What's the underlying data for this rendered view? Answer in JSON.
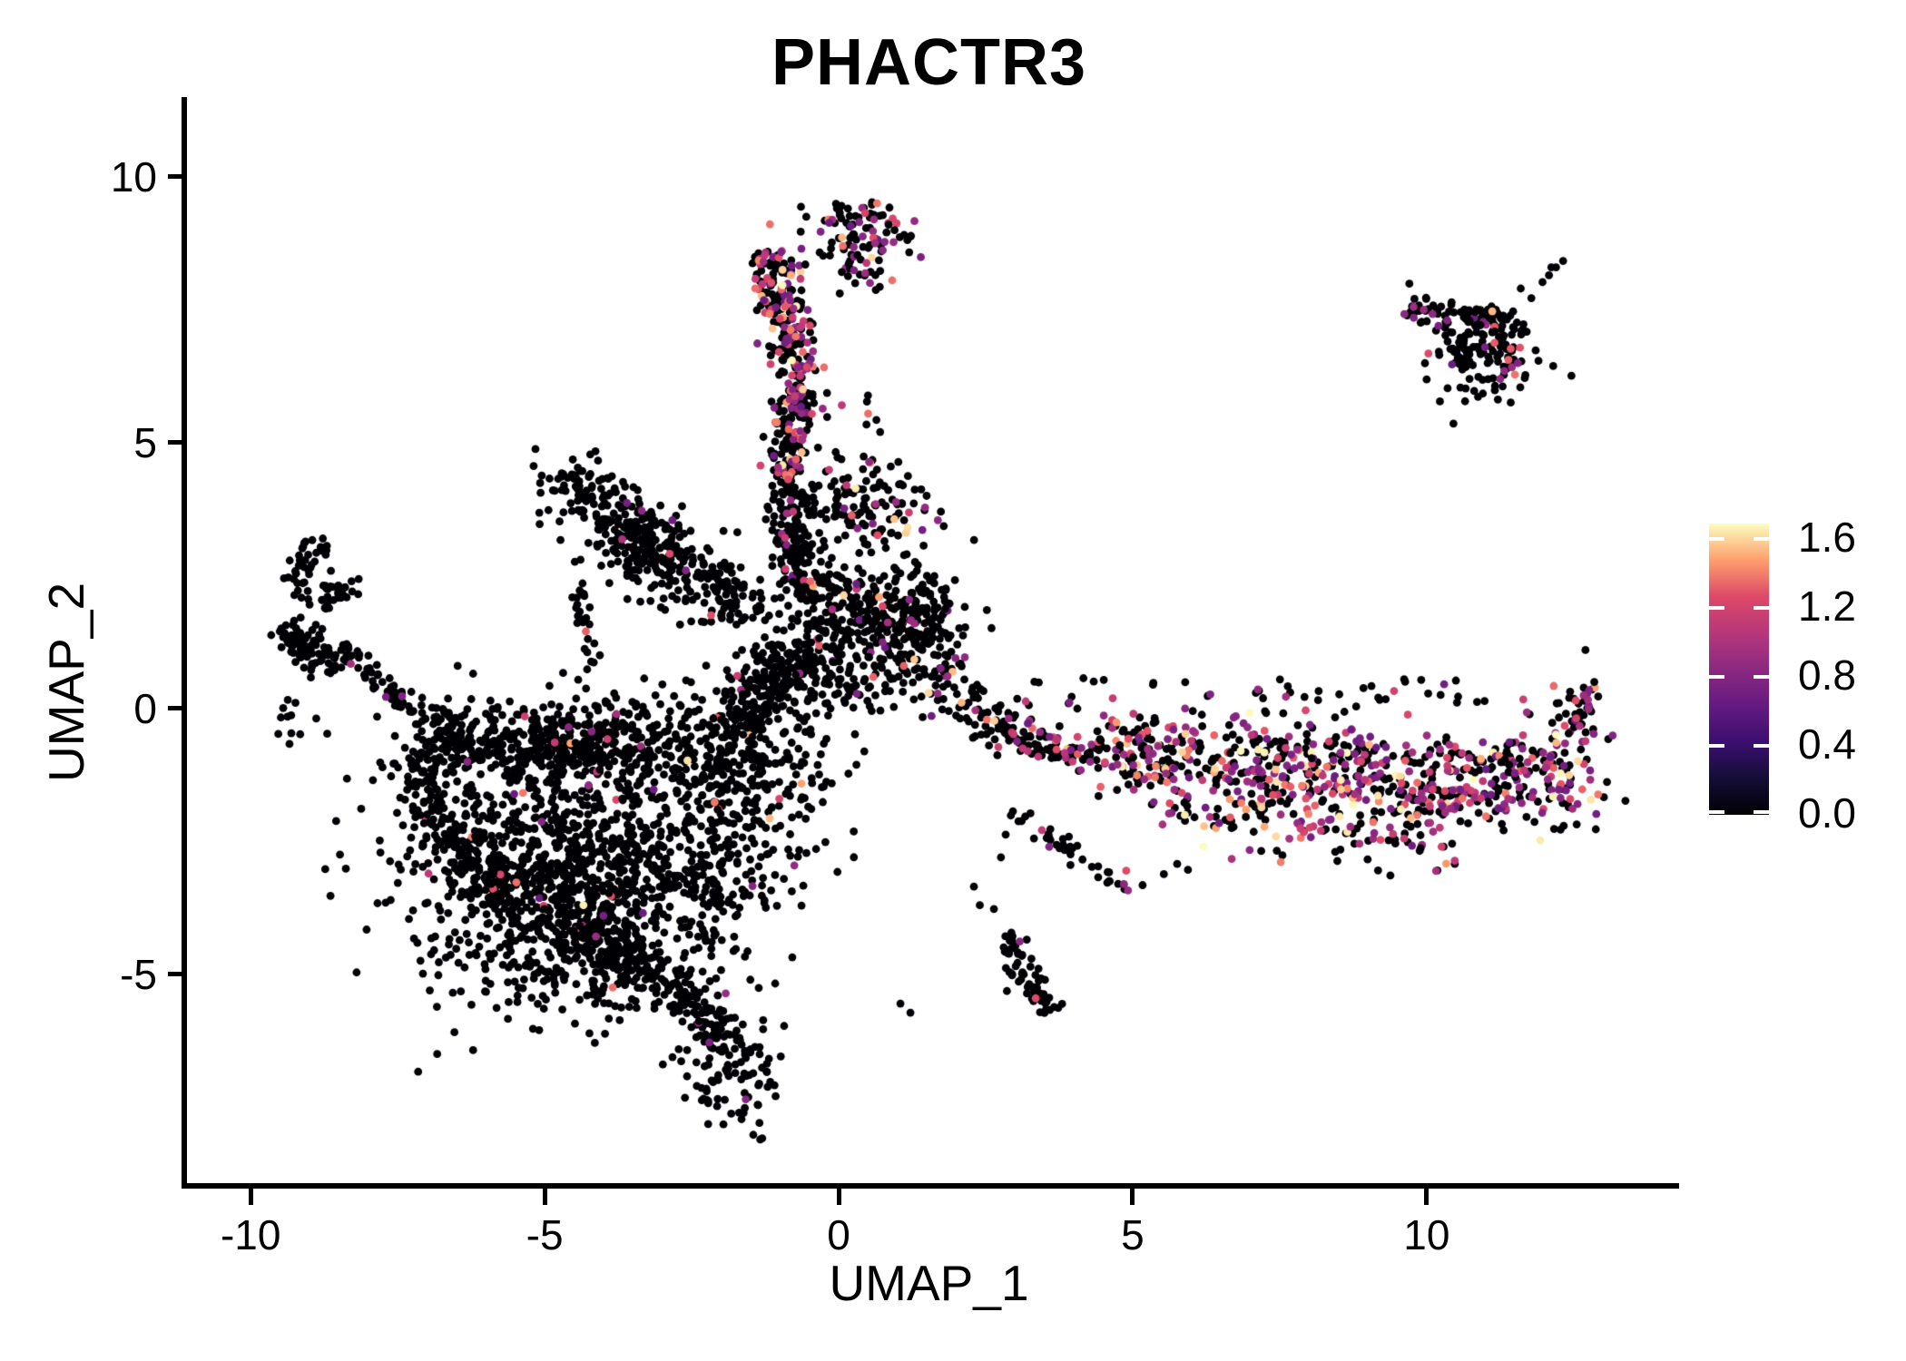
{
  "chart_data": {
    "type": "scatter",
    "title": "PHACTR3",
    "xlabel": "UMAP_1",
    "ylabel": "UMAP_2",
    "xlim": [
      -11.13,
      14.2
    ],
    "ylim": [
      -8.91,
      11.45
    ],
    "x_ticks": [
      -10,
      -5,
      0,
      5,
      10
    ],
    "y_ticks": [
      10,
      5,
      0,
      -5
    ],
    "grid": false,
    "point_radius_px": 4.4,
    "legend": {
      "position": "right",
      "tick_labels": [
        "1.6",
        "1.2",
        "0.8",
        "0.4",
        "0.0"
      ],
      "tick_values": [
        1.6,
        1.2,
        0.8,
        0.4,
        0.0
      ],
      "vmin": 0.0,
      "vmax": 1.6
    },
    "colormap": {
      "name": "magma",
      "stops": [
        "#000004",
        "#140e36",
        "#3b0f70",
        "#641a80",
        "#8c2981",
        "#b73779",
        "#de4968",
        "#fe9f6d",
        "#fcfdbf"
      ]
    },
    "expression_profile": {
      "low": [
        0.62,
        0.95
      ],
      "mid": [
        1.0,
        1.35
      ],
      "high": [
        1.38,
        1.6
      ],
      "p_low": 0.5,
      "p_mid": 0.37,
      "p_high": 0.13
    },
    "clusters": [
      {
        "id": "blob-core",
        "type": "gauss",
        "cx": -4.8,
        "cy": -3.1,
        "sx": 1.25,
        "sy": 1.25,
        "n": 1000,
        "cf": 0.02
      },
      {
        "id": "blob-top-band",
        "type": "gauss",
        "cx": -4.5,
        "cy": -0.65,
        "sx": 1.5,
        "sy": 0.42,
        "n": 480,
        "cf": 0.02
      },
      {
        "id": "blob-right-mid",
        "type": "gauss",
        "cx": -2.4,
        "cy": -2.9,
        "sx": 0.9,
        "sy": 1.1,
        "n": 300,
        "cf": 0.02
      },
      {
        "id": "blob-taper",
        "type": "strip",
        "x1": -5.0,
        "y1": -3.9,
        "x2": -3.0,
        "y2": -5.0,
        "w": 0.45,
        "n": 150,
        "cf": 0.02
      },
      {
        "id": "blob-left-edge",
        "type": "strip",
        "x1": -7.4,
        "y1": -0.8,
        "x2": -5.6,
        "y2": -3.8,
        "w": 0.5,
        "n": 200,
        "cf": 0.01
      },
      {
        "id": "blob-bottom-fringe",
        "type": "strip",
        "x1": -5.2,
        "y1": -4.6,
        "x2": -3.2,
        "y2": -5.4,
        "w": 0.7,
        "n": 60,
        "cf": 0.02
      },
      {
        "id": "blob-topright-lobe",
        "type": "gauss",
        "cx": -1.6,
        "cy": -1.1,
        "sx": 0.8,
        "sy": 0.75,
        "n": 240,
        "cf": 0.02
      },
      {
        "id": "blob-bridge-center",
        "type": "strip",
        "x1": -1.7,
        "y1": -0.2,
        "x2": -0.5,
        "y2": 1.1,
        "w": 0.5,
        "n": 160,
        "cf": 0.03
      },
      {
        "id": "tail-strip",
        "type": "strip",
        "x1": -2.9,
        "y1": -5.0,
        "x2": -1.85,
        "y2": -6.3,
        "w": 0.4,
        "n": 110,
        "cf": 0.01
      },
      {
        "id": "tail-clump",
        "type": "gauss",
        "cx": -1.75,
        "cy": -6.9,
        "sx": 0.42,
        "sy": 0.5,
        "n": 90,
        "cf": 0.0
      },
      {
        "id": "hook-arc",
        "type": "arc",
        "cx": -8.75,
        "cy": 2.55,
        "r": 0.5,
        "a0": 80,
        "a1": 330,
        "jr": 0.13,
        "n": 60,
        "cf": 0.0
      },
      {
        "id": "hook-inner",
        "type": "gauss",
        "cx": -8.55,
        "cy": 2.2,
        "sx": 0.18,
        "sy": 0.18,
        "n": 14,
        "cf": 0.0
      },
      {
        "id": "left-band",
        "type": "strip",
        "x1": -9.45,
        "y1": 1.55,
        "x2": -8.55,
        "y2": 0.75,
        "w": 0.32,
        "n": 85,
        "cf": 0.0
      },
      {
        "id": "left-chain",
        "type": "strip",
        "x1": -8.45,
        "y1": 1.15,
        "x2": -7.1,
        "y2": -0.1,
        "w": 0.25,
        "n": 55,
        "cf": 0.02
      },
      {
        "id": "left-merge",
        "type": "strip",
        "x1": -7.1,
        "y1": -0.15,
        "x2": -6.3,
        "y2": -0.7,
        "w": 0.4,
        "n": 45,
        "cf": 0.0
      },
      {
        "id": "left-below-sparse",
        "type": "box",
        "x1": -9.6,
        "y1": -0.7,
        "x2": -8.5,
        "y2": 0.3,
        "n": 12,
        "cf": 0.0
      },
      {
        "id": "triangle-main",
        "type": "gauss",
        "cx": -3.2,
        "cy": 3.05,
        "sx": 0.95,
        "sy": 0.42,
        "rot": -38,
        "n": 330,
        "cf": 0.012
      },
      {
        "id": "triangle-apex",
        "type": "gauss",
        "cx": -4.35,
        "cy": 4.25,
        "sx": 0.28,
        "sy": 0.22,
        "n": 45,
        "cf": 0.0
      },
      {
        "id": "triangle-right-sparse",
        "type": "strip",
        "x1": -2.2,
        "y1": 2.5,
        "x2": -1.45,
        "y2": 1.75,
        "w": 0.35,
        "n": 40,
        "cf": 0.02
      },
      {
        "id": "chain-triangle-blob",
        "type": "strip",
        "x1": -4.5,
        "y1": 2.35,
        "x2": -4.15,
        "y2": 0.7,
        "w": 0.18,
        "n": 26,
        "cf": 0.0
      },
      {
        "id": "arm-upper",
        "type": "strip",
        "x1": -1.2,
        "y1": 8.6,
        "x2": -0.65,
        "y2": 6.3,
        "w": 0.45,
        "n": 190,
        "cf": 0.45
      },
      {
        "id": "arm-mid",
        "type": "strip",
        "x1": -0.7,
        "y1": 6.3,
        "x2": -0.9,
        "y2": 4.3,
        "w": 0.33,
        "n": 150,
        "cf": 0.28
      },
      {
        "id": "arm-lower",
        "type": "strip",
        "x1": -0.95,
        "y1": 4.3,
        "x2": -0.55,
        "y2": 2.1,
        "w": 0.45,
        "n": 170,
        "cf": 0.1
      },
      {
        "id": "arm-top-blob",
        "type": "gauss",
        "cx": 0.3,
        "cy": 8.95,
        "sx": 0.5,
        "sy": 0.33,
        "n": 85,
        "cf": 0.32
      },
      {
        "id": "arm-right-sparse",
        "type": "box",
        "x1": 0.0,
        "y1": 7.8,
        "x2": 0.75,
        "y2": 8.7,
        "n": 22,
        "cf": 0.3
      },
      {
        "id": "arm-gap-sparse",
        "type": "box",
        "x1": -0.25,
        "y1": 4.6,
        "x2": 0.9,
        "y2": 6.2,
        "n": 12,
        "cf": 0.2
      },
      {
        "id": "subcluster-upper",
        "type": "gauss",
        "cx": 0.45,
        "cy": 3.8,
        "sx": 0.52,
        "sy": 0.45,
        "n": 130,
        "cf": 0.15
      },
      {
        "id": "center-main",
        "type": "gauss",
        "cx": 0.45,
        "cy": 1.85,
        "sx": 0.8,
        "sy": 0.5,
        "n": 260,
        "cf": 0.05
      },
      {
        "id": "center-right-lobe",
        "type": "gauss",
        "cx": 1.35,
        "cy": 1.5,
        "sx": 0.42,
        "sy": 0.4,
        "n": 110,
        "cf": 0.1
      },
      {
        "id": "center-lower",
        "type": "gauss",
        "cx": 0.15,
        "cy": 0.6,
        "sx": 0.95,
        "sy": 0.38,
        "n": 150,
        "cf": 0.04
      },
      {
        "id": "center-bridge-band",
        "type": "strip",
        "x1": 1.7,
        "y1": 0.8,
        "x2": 2.7,
        "y2": -0.5,
        "w": 0.42,
        "n": 70,
        "cf": 0.1
      },
      {
        "id": "band-start",
        "type": "strip",
        "x1": 2.6,
        "y1": -0.35,
        "x2": 4.4,
        "y2": -0.95,
        "w": 0.38,
        "n": 100,
        "cf": 0.3
      },
      {
        "id": "band-upper",
        "type": "strip",
        "x1": 4.4,
        "y1": -0.55,
        "x2": 11.6,
        "y2": -1.05,
        "w": 0.5,
        "n": 280,
        "cf": 0.45
      },
      {
        "id": "band-core",
        "type": "strip",
        "x1": 4.5,
        "y1": -1.15,
        "x2": 11.4,
        "y2": -1.8,
        "w": 0.55,
        "n": 340,
        "cf": 0.5
      },
      {
        "id": "band-lower",
        "type": "strip",
        "x1": 5.6,
        "y1": -2.0,
        "x2": 10.6,
        "y2": -2.5,
        "w": 0.35,
        "n": 90,
        "cf": 0.45
      },
      {
        "id": "band-right-tip",
        "type": "gauss",
        "cx": 12.15,
        "cy": -1.15,
        "sx": 0.5,
        "sy": 0.6,
        "n": 130,
        "cf": 0.5
      },
      {
        "id": "band-tip-chain",
        "type": "strip",
        "x1": 12.45,
        "y1": -0.45,
        "x2": 12.75,
        "y2": 0.5,
        "w": 0.22,
        "n": 30,
        "cf": 0.35
      },
      {
        "id": "band-above-sparse",
        "type": "box",
        "x1": 3.0,
        "y1": -0.15,
        "x2": 11.0,
        "y2": 0.6,
        "n": 55,
        "cf": 0.15
      },
      {
        "id": "band-below-sparse",
        "type": "box",
        "x1": 4.5,
        "y1": -3.2,
        "x2": 10.5,
        "y2": -2.6,
        "n": 20,
        "cf": 0.3
      },
      {
        "id": "chain-down",
        "type": "strip",
        "x1": 3.0,
        "y1": -1.95,
        "x2": 5.0,
        "y2": -3.45,
        "w": 0.2,
        "n": 40,
        "cf": 0.05
      },
      {
        "id": "mini-bottom",
        "type": "strip",
        "x1": 2.85,
        "y1": -4.25,
        "x2": 3.6,
        "y2": -5.75,
        "w": 0.26,
        "n": 65,
        "cf": 0.0
      },
      {
        "id": "topright-top-band",
        "type": "strip",
        "x1": 9.7,
        "y1": 7.5,
        "x2": 11.75,
        "y2": 7.25,
        "w": 0.28,
        "n": 85,
        "cf": 0.05
      },
      {
        "id": "topright-blob",
        "type": "gauss",
        "cx": 11.0,
        "cy": 6.65,
        "sx": 0.48,
        "sy": 0.42,
        "n": 115,
        "cf": 0.05
      }
    ],
    "extra_points": [
      {
        "x": -2.2,
        "y": -6.28,
        "v": 0.72
      },
      {
        "x": -1.58,
        "y": -7.35,
        "v": 0.78
      },
      {
        "x": -7.7,
        "y": 0.22,
        "v": 0.7
      },
      {
        "x": -3.35,
        "y": 3.72,
        "v": 0.8
      },
      {
        "x": -2.6,
        "y": 2.6,
        "v": 0.75
      },
      {
        "x": -4.3,
        "y": 1.45,
        "v": 1.25
      },
      {
        "x": 0.45,
        "y": 9.32,
        "v": 1.15
      },
      {
        "x": 0.6,
        "y": 9.2,
        "v": 0.85
      },
      {
        "x": 0.75,
        "y": 9.28,
        "v": 0
      },
      {
        "x": 0.85,
        "y": 9.1,
        "v": 0
      },
      {
        "x": 0.35,
        "y": 9.15,
        "v": 0.75
      },
      {
        "x": 0.95,
        "y": 9.0,
        "v": 0
      },
      {
        "x": 0.62,
        "y": 8.75,
        "v": 0.85
      },
      {
        "x": 0.75,
        "y": 8.62,
        "v": 0.8
      },
      {
        "x": 0.66,
        "y": 3.26,
        "v": 1.2
      },
      {
        "x": -1.33,
        "y": 4.57,
        "v": 1.15
      },
      {
        "x": 1.23,
        "y": 1.66,
        "v": 0.85
      },
      {
        "x": 1.2,
        "y": 2.05,
        "v": 0.8
      },
      {
        "x": 3.58,
        "y": -2.6,
        "v": 0.75
      },
      {
        "x": 4.89,
        "y": -3.05,
        "v": 1.2
      },
      {
        "x": 4.85,
        "y": -3.3,
        "v": 0.8
      },
      {
        "x": 4.92,
        "y": -3.42,
        "v": 0.85
      },
      {
        "x": 3.08,
        "y": -4.38,
        "v": 0.78
      },
      {
        "x": 3.35,
        "y": -5.45,
        "v": 1.2
      },
      {
        "x": 2.4,
        "y": -3.7,
        "v": 0
      },
      {
        "x": 2.64,
        "y": -3.77,
        "v": 0
      },
      {
        "x": 2.76,
        "y": -2.8,
        "v": 0
      },
      {
        "x": 2.84,
        "y": -2.37,
        "v": 0
      },
      {
        "x": 1.05,
        "y": -5.55,
        "v": 0
      },
      {
        "x": 1.22,
        "y": -5.72,
        "v": 0
      },
      {
        "x": 2.3,
        "y": -3.35,
        "v": 0
      },
      {
        "x": 9.62,
        "y": 7.42,
        "v": 0.8
      },
      {
        "x": 9.78,
        "y": 7.35,
        "v": 0.75
      },
      {
        "x": 9.95,
        "y": 7.5,
        "v": 0.85
      },
      {
        "x": 10.1,
        "y": 7.42,
        "v": 0.8
      },
      {
        "x": 10.35,
        "y": 7.3,
        "v": 0.75
      },
      {
        "x": 10.2,
        "y": 7.2,
        "v": 0.7
      },
      {
        "x": 11.39,
        "y": 6.56,
        "v": 1.25
      },
      {
        "x": 11.5,
        "y": 6.28,
        "v": 1.3
      },
      {
        "x": 11.45,
        "y": 6.42,
        "v": 0.85
      },
      {
        "x": 11.32,
        "y": 6.35,
        "v": 0.8
      },
      {
        "x": 11.55,
        "y": 6.5,
        "v": 0.75
      },
      {
        "x": 11.25,
        "y": 6.2,
        "v": 0.8
      },
      {
        "x": 11.97,
        "y": 8.02,
        "v": 0
      },
      {
        "x": 12.08,
        "y": 8.15,
        "v": 0
      },
      {
        "x": 12.2,
        "y": 8.3,
        "v": 0
      },
      {
        "x": 12.32,
        "y": 8.42,
        "v": 0
      },
      {
        "x": 12.12,
        "y": 8.3,
        "v": 0
      },
      {
        "x": 11.78,
        "y": 7.72,
        "v": 0
      },
      {
        "x": 11.6,
        "y": 7.9,
        "v": 0
      },
      {
        "x": 9.17,
        "y": -1.64,
        "v": 1.55
      },
      {
        "x": 6.2,
        "y": -2.6,
        "v": 1.6
      },
      {
        "x": 12.85,
        "y": 0.5,
        "v": 0
      },
      {
        "x": 12.7,
        "y": 1.1,
        "v": 0
      }
    ]
  }
}
